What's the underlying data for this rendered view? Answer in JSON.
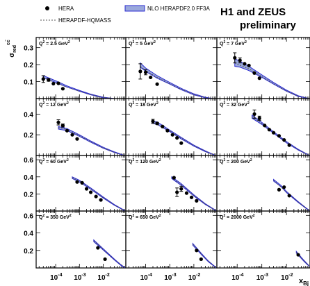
{
  "title_line1": "H1 and ZEUS",
  "title_line2": "preliminary",
  "legend": {
    "data_label": "HERA",
    "dashed_label": "HERAPDF-HQMASS",
    "band_label": "NLO HERAPDF2.0 FF3A"
  },
  "colors": {
    "band_fill": "#9aa8dc",
    "band_line": "#2a2ad0",
    "dashed": "#555555",
    "points": "#000000"
  },
  "chart_data": {
    "type": "scatter",
    "xlabel": "x_Bj",
    "ylabel": "σ_red^cc̄",
    "x_scale": "log",
    "xlim": [
      1.5e-05,
      0.09
    ],
    "x_tick_labels": [
      "10^-4",
      "10^-3",
      "10^-2"
    ],
    "rows": [
      {
        "ylim": [
          0,
          0.36
        ],
        "yticks": [
          {
            "v": 0.1,
            "label": "0.1"
          },
          {
            "v": 0.2,
            "label": "0.2"
          },
          {
            "v": 0.3,
            "label": "0.3"
          }
        ]
      },
      {
        "ylim": [
          0,
          0.55
        ],
        "yticks": [
          {
            "v": 0.2,
            "label": "0.2"
          },
          {
            "v": 0.4,
            "label": "0.4"
          }
        ]
      },
      {
        "ylim": [
          0,
          0.65
        ],
        "yticks": [
          {
            "v": 0.2,
            "label": "0.2"
          },
          {
            "v": 0.4,
            "label": "0.4"
          },
          {
            "v": 0.6,
            "label": "0.6"
          }
        ]
      },
      {
        "ylim": [
          0,
          0.65
        ],
        "yticks": [
          {
            "v": 0.2,
            "label": "0.2"
          },
          {
            "v": 0.4,
            "label": "0.4"
          },
          {
            "v": 0.6,
            "label": "0.6"
          }
        ]
      }
    ],
    "panels": [
      {
        "q2": "2.5",
        "unit": "GeV",
        "points": [
          [
            3e-05,
            0.115,
            0.02
          ],
          [
            5e-05,
            0.11,
            0.008
          ],
          [
            8e-05,
            0.088,
            0
          ],
          [
            0.00013,
            0.09,
            0
          ],
          [
            0.0002,
            0.058,
            0
          ]
        ],
        "band": [
          [
            3e-05,
            0.135,
            0.122
          ],
          [
            0.0001,
            0.105,
            0.095
          ],
          [
            0.0003,
            0.075,
            0.068
          ],
          [
            0.001,
            0.048,
            0.043
          ],
          [
            0.003,
            0.026,
            0.022
          ],
          [
            0.01,
            0.008,
            0.005
          ],
          [
            0.03,
            0.0,
            0.0
          ]
        ],
        "dashed": [
          [
            3e-05,
            0.125
          ],
          [
            0.0001,
            0.092
          ],
          [
            0.0003,
            0.067
          ],
          [
            0.001,
            0.043
          ],
          [
            0.003,
            0.023
          ],
          [
            0.01,
            0.007
          ],
          [
            0.03,
            0.0
          ]
        ]
      },
      {
        "q2": "5",
        "unit": "GeV",
        "points": [
          [
            6e-05,
            0.16,
            0.045
          ],
          [
            0.0001,
            0.155,
            0.015
          ],
          [
            0.00016,
            0.125,
            0
          ],
          [
            0.0003,
            0.085,
            0
          ]
        ],
        "band": [
          [
            6e-05,
            0.21,
            0.185
          ],
          [
            0.0001,
            0.18,
            0.16
          ],
          [
            0.0003,
            0.135,
            0.12
          ],
          [
            0.001,
            0.095,
            0.085
          ],
          [
            0.003,
            0.06,
            0.052
          ],
          [
            0.01,
            0.028,
            0.022
          ],
          [
            0.03,
            0.008,
            0.004
          ],
          [
            0.06,
            0.0,
            0.0
          ]
        ],
        "dashed": [
          [
            6e-05,
            0.19
          ],
          [
            0.0001,
            0.165
          ],
          [
            0.0003,
            0.125
          ],
          [
            0.001,
            0.088
          ],
          [
            0.003,
            0.055
          ],
          [
            0.01,
            0.024
          ],
          [
            0.03,
            0.006
          ],
          [
            0.06,
            0.0
          ]
        ]
      },
      {
        "q2": "7",
        "unit": "GeV",
        "points": [
          [
            8e-05,
            0.24,
            0.03
          ],
          [
            0.00013,
            0.225,
            0.015
          ],
          [
            0.0002,
            0.205,
            0
          ],
          [
            0.0003,
            0.195,
            0
          ],
          [
            0.0005,
            0.15,
            0
          ],
          [
            0.0008,
            0.12,
            0
          ]
        ],
        "band": [
          [
            8e-05,
            0.235,
            0.19
          ],
          [
            0.00013,
            0.22,
            0.185
          ],
          [
            0.0003,
            0.19,
            0.165
          ],
          [
            0.001,
            0.14,
            0.125
          ],
          [
            0.003,
            0.095,
            0.085
          ],
          [
            0.01,
            0.05,
            0.043
          ],
          [
            0.03,
            0.017,
            0.012
          ],
          [
            0.08,
            0.0,
            0.0
          ]
        ],
        "dashed": [
          [
            8e-05,
            0.21
          ],
          [
            0.0003,
            0.175
          ],
          [
            0.001,
            0.13
          ],
          [
            0.003,
            0.088
          ],
          [
            0.01,
            0.045
          ],
          [
            0.03,
            0.014
          ],
          [
            0.08,
            0.0
          ]
        ]
      },
      {
        "q2": "12",
        "unit": "GeV",
        "points": [
          [
            0.00013,
            0.32,
            0.025
          ],
          [
            0.0002,
            0.29,
            0.015
          ],
          [
            0.0003,
            0.24,
            0
          ],
          [
            0.0005,
            0.2,
            0
          ],
          [
            0.0008,
            0.16,
            0
          ]
        ],
        "band": [
          [
            0.00013,
            0.28,
            0.255
          ],
          [
            0.0003,
            0.26,
            0.24
          ],
          [
            0.001,
            0.2,
            0.185
          ],
          [
            0.003,
            0.14,
            0.128
          ],
          [
            0.01,
            0.08,
            0.07
          ],
          [
            0.03,
            0.035,
            0.028
          ],
          [
            0.08,
            0.0,
            0.0
          ]
        ],
        "dashed": [
          [
            0.00013,
            0.27
          ],
          [
            0.0003,
            0.25
          ],
          [
            0.001,
            0.192
          ],
          [
            0.003,
            0.133
          ],
          [
            0.01,
            0.075
          ],
          [
            0.03,
            0.03
          ],
          [
            0.08,
            0.0
          ]
        ]
      },
      {
        "q2": "18",
        "unit": "GeV",
        "points": [
          [
            0.0002,
            0.33,
            0.02
          ],
          [
            0.0003,
            0.31,
            0.01
          ],
          [
            0.0005,
            0.28,
            0
          ],
          [
            0.0008,
            0.24,
            0
          ],
          [
            0.0013,
            0.2,
            0
          ],
          [
            0.002,
            0.17,
            0
          ],
          [
            0.003,
            0.12,
            0
          ]
        ],
        "band": [
          [
            0.0002,
            0.335,
            0.31
          ],
          [
            0.0003,
            0.325,
            0.3
          ],
          [
            0.001,
            0.245,
            0.23
          ],
          [
            0.003,
            0.175,
            0.16
          ],
          [
            0.01,
            0.1,
            0.09
          ],
          [
            0.03,
            0.045,
            0.037
          ],
          [
            0.08,
            0.0,
            0.0
          ]
        ],
        "dashed": [
          [
            0.0002,
            0.322
          ],
          [
            0.001,
            0.237
          ],
          [
            0.003,
            0.167
          ],
          [
            0.01,
            0.095
          ],
          [
            0.03,
            0.04
          ],
          [
            0.08,
            0.0
          ]
        ]
      },
      {
        "q2": "32",
        "unit": "GeV",
        "points": [
          [
            0.0005,
            0.4,
            0.04
          ],
          [
            0.0008,
            0.36,
            0.02
          ],
          [
            0.0013,
            0.29,
            0
          ],
          [
            0.002,
            0.25,
            0
          ],
          [
            0.003,
            0.22,
            0
          ],
          [
            0.005,
            0.19,
            0
          ],
          [
            0.008,
            0.15,
            0
          ],
          [
            0.013,
            0.1,
            0
          ]
        ],
        "band": [
          [
            0.0004,
            0.39,
            0.36
          ],
          [
            0.001,
            0.32,
            0.3
          ],
          [
            0.003,
            0.23,
            0.215
          ],
          [
            0.01,
            0.135,
            0.122
          ],
          [
            0.03,
            0.06,
            0.052
          ],
          [
            0.08,
            0.005,
            0.002
          ]
        ],
        "dashed": [
          [
            0.0004,
            0.375
          ],
          [
            0.001,
            0.31
          ],
          [
            0.003,
            0.222
          ],
          [
            0.01,
            0.128
          ],
          [
            0.03,
            0.056
          ],
          [
            0.08,
            0.003
          ]
        ]
      },
      {
        "q2": "60",
        "unit": "GeV",
        "points": [
          [
            0.0008,
            0.34,
            0
          ],
          [
            0.0013,
            0.33,
            0
          ],
          [
            0.002,
            0.26,
            0
          ],
          [
            0.003,
            0.22,
            0
          ],
          [
            0.005,
            0.17,
            0
          ],
          [
            0.008,
            0.13,
            0
          ]
        ],
        "band": [
          [
            0.0005,
            0.4,
            0.38
          ],
          [
            0.001,
            0.36,
            0.34
          ],
          [
            0.003,
            0.27,
            0.255
          ],
          [
            0.01,
            0.165,
            0.152
          ],
          [
            0.03,
            0.075,
            0.066
          ],
          [
            0.08,
            0.008,
            0.004
          ]
        ],
        "dashed": [
          [
            0.0005,
            0.39
          ],
          [
            0.001,
            0.35
          ],
          [
            0.003,
            0.262
          ],
          [
            0.01,
            0.158
          ],
          [
            0.03,
            0.07
          ],
          [
            0.08,
            0.006
          ]
        ]
      },
      {
        "q2": "120",
        "unit": "GeV",
        "points": [
          [
            0.0015,
            0.39,
            0
          ],
          [
            0.002,
            0.22,
            0.05
          ],
          [
            0.003,
            0.26,
            0.03
          ],
          [
            0.005,
            0.21,
            0
          ],
          [
            0.008,
            0.16,
            0
          ],
          [
            0.013,
            0.12,
            0
          ]
        ],
        "band": [
          [
            0.0012,
            0.4,
            0.38
          ],
          [
            0.003,
            0.32,
            0.3
          ],
          [
            0.01,
            0.19,
            0.175
          ],
          [
            0.03,
            0.085,
            0.075
          ],
          [
            0.08,
            0.01,
            0.005
          ]
        ],
        "dashed": [
          [
            0.0012,
            0.39
          ],
          [
            0.003,
            0.31
          ],
          [
            0.01,
            0.182
          ],
          [
            0.03,
            0.08
          ],
          [
            0.08,
            0.008
          ]
        ]
      },
      {
        "q2": "200",
        "unit": "GeV",
        "points": [
          [
            0.005,
            0.25,
            0
          ],
          [
            0.008,
            0.28,
            0
          ],
          [
            0.013,
            0.18,
            0
          ]
        ],
        "band": [
          [
            0.003,
            0.37,
            0.35
          ],
          [
            0.006,
            0.3,
            0.285
          ],
          [
            0.01,
            0.23,
            0.215
          ],
          [
            0.03,
            0.11,
            0.1
          ],
          [
            0.08,
            0.012,
            0.006
          ]
        ],
        "dashed": [
          [
            0.003,
            0.36
          ],
          [
            0.01,
            0.222
          ],
          [
            0.03,
            0.105
          ],
          [
            0.08,
            0.009
          ]
        ]
      },
      {
        "q2": "350",
        "unit": "GeV",
        "points": [
          [
            0.006,
            0.23,
            0
          ],
          [
            0.012,
            0.1,
            0
          ]
        ],
        "band": [
          [
            0.004,
            0.32,
            0.3
          ],
          [
            0.01,
            0.22,
            0.205
          ],
          [
            0.03,
            0.1,
            0.09
          ],
          [
            0.06,
            0.03,
            0.022
          ],
          [
            0.08,
            0.01,
            0.005
          ]
        ],
        "dashed": [
          [
            0.004,
            0.31
          ],
          [
            0.01,
            0.212
          ],
          [
            0.03,
            0.095
          ],
          [
            0.08,
            0.008
          ]
        ]
      },
      {
        "q2": "650",
        "unit": "GeV",
        "points": [
          [
            0.013,
            0.2,
            0
          ],
          [
            0.02,
            0.1,
            0
          ]
        ],
        "band": [
          [
            0.009,
            0.28,
            0.26
          ],
          [
            0.02,
            0.17,
            0.155
          ],
          [
            0.04,
            0.08,
            0.07
          ],
          [
            0.08,
            0.01,
            0.005
          ]
        ],
        "dashed": [
          [
            0.009,
            0.27
          ],
          [
            0.02,
            0.162
          ],
          [
            0.04,
            0.075
          ],
          [
            0.08,
            0.008
          ]
        ]
      },
      {
        "q2": "2000",
        "unit": "GeV",
        "points": [
          [
            0.03,
            0.15,
            0
          ]
        ],
        "band": [
          [
            0.025,
            0.19,
            0.17
          ],
          [
            0.05,
            0.09,
            0.078
          ],
          [
            0.08,
            0.03,
            0.022
          ]
        ],
        "dashed": [
          [
            0.025,
            0.18
          ],
          [
            0.05,
            0.084
          ],
          [
            0.08,
            0.026
          ]
        ]
      }
    ]
  }
}
